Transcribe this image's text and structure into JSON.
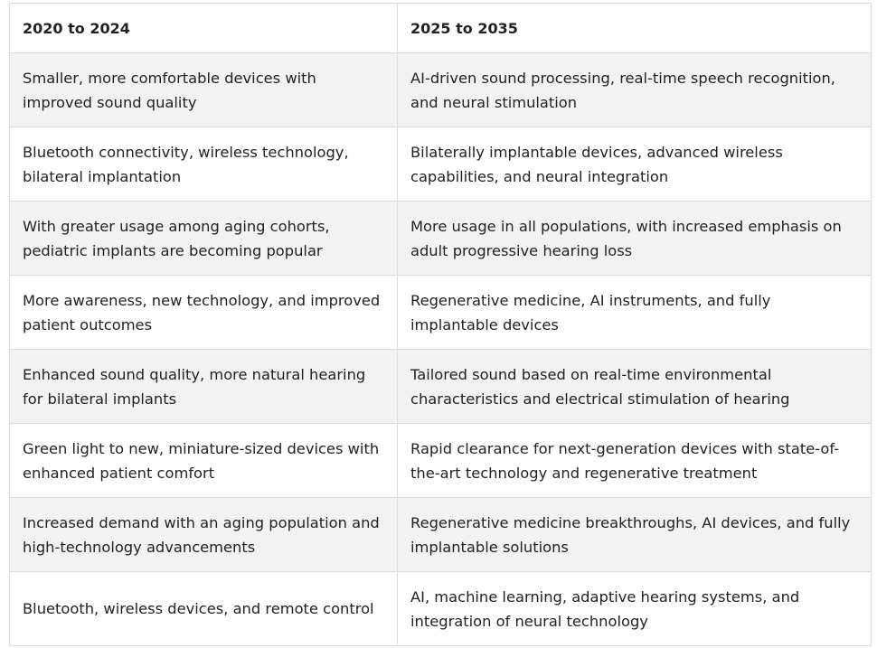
{
  "table": {
    "headers": [
      "2020 to 2024",
      "2025 to 2035"
    ],
    "rows": [
      [
        "Smaller, more comfortable devices with improved sound quality",
        "AI-driven sound processing, real-time speech recognition, and neural stimulation"
      ],
      [
        "Bluetooth connectivity, wireless technology, bilateral implantation",
        "Bilaterally implantable devices, advanced wireless capabilities, and neural integration"
      ],
      [
        "With greater usage among aging cohorts, pediatric implants are becoming popular",
        "More usage in all populations, with increased emphasis on adult progressive hearing loss"
      ],
      [
        "More awareness, new technology, and improved patient outcomes",
        "Regenerative medicine, AI instruments, and fully implantable devices"
      ],
      [
        "Enhanced sound quality, more natural hearing for bilateral implants",
        "Tailored sound based on real-time environmental characteristics and electrical stimulation of hearing"
      ],
      [
        "Green light to new, miniature-sized devices with enhanced patient comfort",
        "Rapid clearance for next-generation devices with state-of-the-art technology and regenerative treatment"
      ],
      [
        "Increased demand with an aging population and high-technology advancements",
        "Regenerative medicine breakthroughs, AI devices, and fully implantable solutions"
      ],
      [
        "Bluetooth, wireless devices, and remote control",
        "AI, machine learning, adaptive hearing systems, and integration of neural technology"
      ]
    ]
  }
}
